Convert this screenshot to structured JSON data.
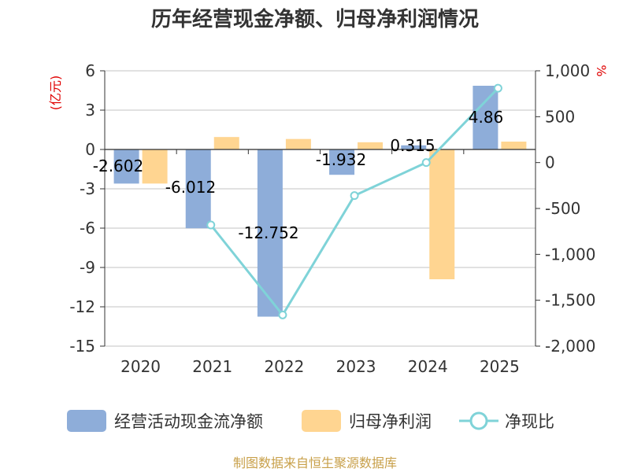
{
  "chart_data": {
    "type": "bar",
    "title": "历年经营现金净额、归母净利润情况",
    "categories": [
      "2020",
      "2021",
      "2022",
      "2023",
      "2024",
      "2025"
    ],
    "ylabel_left": "(亿元)",
    "ylabel_right": "%",
    "ylim_left": [
      -15,
      6
    ],
    "ylim_right": [
      -2000,
      1000
    ],
    "yticks_left": [
      "6",
      "3",
      "0",
      "-3",
      "-6",
      "-9",
      "-12",
      "-15"
    ],
    "yticks_right": [
      "1,000",
      "500",
      "0",
      "-500",
      "-1,000",
      "-1,500",
      "-2,000"
    ],
    "series": [
      {
        "name": "经营活动现金流净额",
        "type": "bar",
        "color": "#8eadd9",
        "values": [
          -2.602,
          -6.012,
          -12.752,
          -1.932,
          0.315,
          4.86
        ],
        "labels": [
          "-2.602",
          "-6.012",
          "-12.752",
          "-1.932",
          "0.315",
          "4.86"
        ]
      },
      {
        "name": "归母净利润",
        "type": "bar",
        "color": "#ffd591",
        "values": [
          -2.6,
          0.95,
          0.8,
          0.55,
          -9.9,
          0.6
        ]
      },
      {
        "name": "净现比",
        "type": "line",
        "axis": "right",
        "color": "#7fd3d8",
        "values": [
          null,
          -680,
          -1660,
          -360,
          0,
          810
        ]
      }
    ],
    "source": "制图数据来自恒生聚源数据库"
  }
}
